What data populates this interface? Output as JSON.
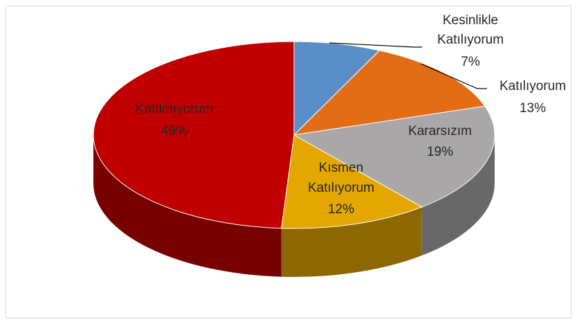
{
  "chart_data": {
    "type": "pie3d",
    "categories": [
      "Kesinlikle Katılıyorum",
      "Katılıyorum",
      "Kararsızım",
      "Kısmen Katılıyorum",
      "Katılmıyorum"
    ],
    "values": [
      7,
      13,
      19,
      12,
      49
    ],
    "value_labels": [
      "7%",
      "13%",
      "19%",
      "12%",
      "49%"
    ],
    "colors": [
      "#5a8ec6",
      "#e36c17",
      "#a9a7a7",
      "#e3a700",
      "#c00000"
    ]
  }
}
